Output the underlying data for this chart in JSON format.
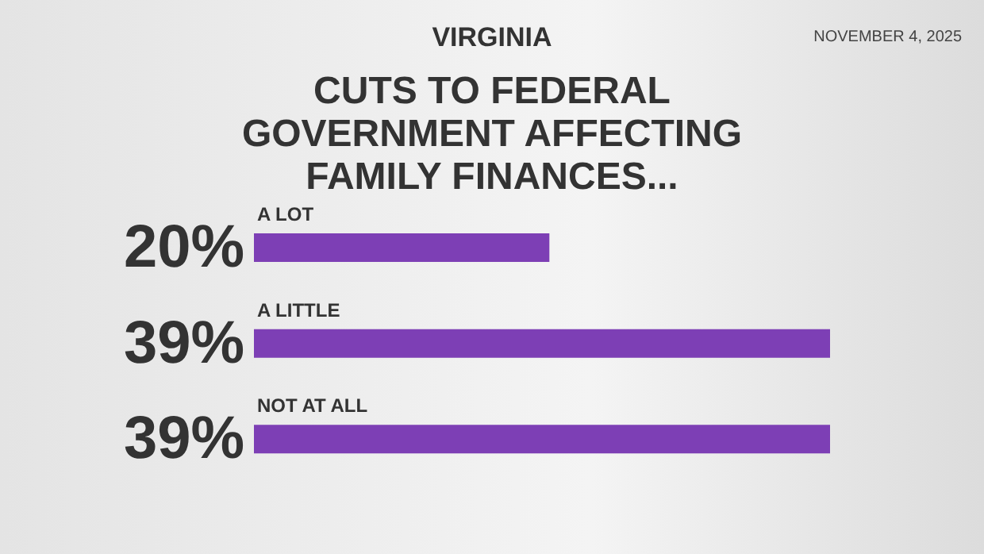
{
  "chart_data": {
    "type": "bar",
    "orientation": "horizontal",
    "subtitle": "VIRGINIA",
    "title": "CUTS TO FEDERAL GOVERNMENT AFFECTING FAMILY FINANCES...",
    "annotations": [
      "NOVEMBER 4, 2025"
    ],
    "categories": [
      "A LOT",
      "A LITTLE",
      "NOT AT ALL"
    ],
    "values": [
      20,
      39,
      39
    ],
    "color": "#7d3fb5",
    "value_labels": [
      "20%",
      "39%",
      "39%"
    ]
  }
}
